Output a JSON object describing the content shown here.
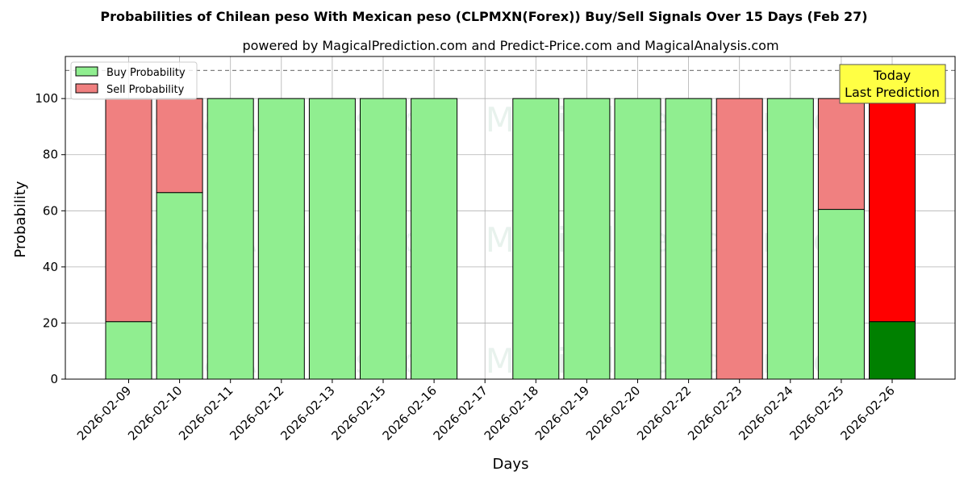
{
  "chart_data": {
    "type": "bar",
    "stacked": true,
    "title": "Probabilities of Chilean peso With Mexican peso (CLPMXN(Forex)) Buy/Sell Signals Over 15 Days (Feb 27)",
    "subtitle": "powered by MagicalPrediction.com and Predict-Price.com and MagicalAnalysis.com",
    "xlabel": "Days",
    "ylabel": "Probability",
    "ylim": [
      0,
      115
    ],
    "yticks": [
      0,
      20,
      40,
      60,
      80,
      100
    ],
    "reference_line": 110,
    "grid": true,
    "legend_position": "top-left",
    "categories": [
      "2026-02-09",
      "2026-02-10",
      "2026-02-11",
      "2026-02-12",
      "2026-02-13",
      "2026-02-15",
      "2026-02-16",
      "2026-02-17",
      "2026-02-18",
      "2026-02-19",
      "2026-02-20",
      "2026-02-22",
      "2026-02-23",
      "2026-02-24",
      "2026-02-25",
      "2026-02-26"
    ],
    "series": [
      {
        "name": "Buy Probability",
        "color": "#90ee90",
        "values": [
          20.5,
          66.5,
          100,
          100,
          100,
          100,
          100,
          null,
          100,
          100,
          100,
          100,
          0,
          100,
          60.5,
          20.5
        ]
      },
      {
        "name": "Sell Probability",
        "color": "#f08080",
        "values": [
          79.5,
          33.5,
          0,
          0,
          0,
          0,
          0,
          null,
          0,
          0,
          0,
          0,
          100,
          0,
          39.5,
          79.5
        ]
      }
    ],
    "highlight": {
      "index": 15,
      "buy_color": "#008000",
      "sell_color": "#ff0000"
    },
    "annotation": {
      "line1": "Today",
      "line2": "Last Prediction",
      "color": "#ffff44"
    },
    "watermarks": [
      "MagicalAnalysis.com",
      "MagicalPrediction.com"
    ]
  }
}
